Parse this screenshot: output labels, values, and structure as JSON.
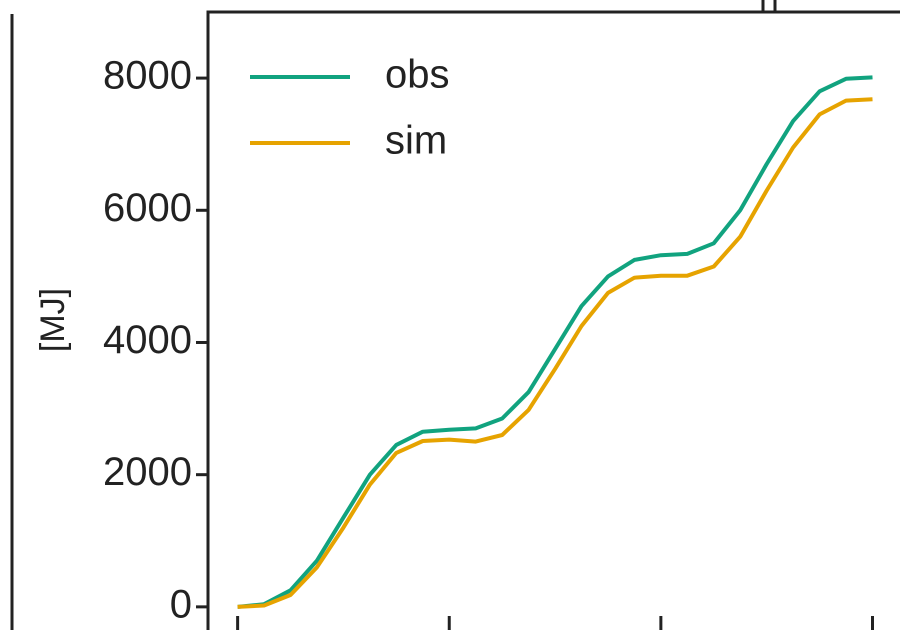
{
  "chart_data": {
    "type": "line",
    "ylabel": "[MJ]",
    "x": [
      0,
      0.125,
      0.25,
      0.375,
      0.5,
      0.625,
      0.75,
      0.875,
      1.0,
      1.125,
      1.25,
      1.375,
      1.5,
      1.625,
      1.75,
      1.875,
      2.0,
      2.125,
      2.25,
      2.375,
      2.5,
      2.625,
      2.75,
      2.875,
      3.0
    ],
    "series": [
      {
        "name": "obs",
        "color": "#11a37f",
        "values": [
          0,
          40,
          250,
          700,
          1350,
          2000,
          2450,
          2650,
          2680,
          2700,
          2850,
          3250,
          3900,
          4550,
          5000,
          5250,
          5320,
          5340,
          5500,
          6000,
          6700,
          7350,
          7800,
          7990,
          8010
        ]
      },
      {
        "name": "sim",
        "color": "#e6a300",
        "values": [
          0,
          20,
          180,
          600,
          1200,
          1850,
          2330,
          2510,
          2530,
          2500,
          2600,
          2980,
          3600,
          4250,
          4750,
          4980,
          5010,
          5010,
          5150,
          5600,
          6300,
          6950,
          7450,
          7660,
          7680
        ]
      }
    ],
    "xlim": [
      -0.14,
      3.13
    ],
    "xticks": [
      0,
      1,
      2,
      3
    ],
    "ylim": [
      -350,
      9000
    ],
    "yticks": [
      0,
      2000,
      4000,
      6000,
      8000
    ],
    "legend": "upper left"
  }
}
